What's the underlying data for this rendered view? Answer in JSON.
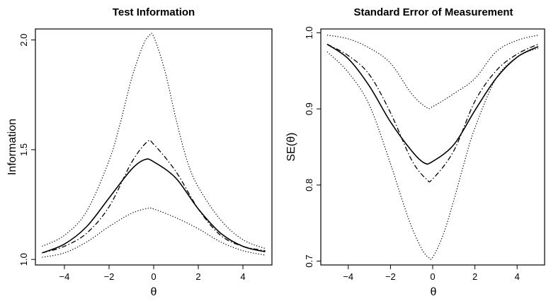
{
  "chart_data": [
    {
      "type": "line",
      "title": "Test Information",
      "xlabel": "θ",
      "ylabel": "Information",
      "xlim": [
        -5.3,
        5.3
      ],
      "ylim": [
        0.975,
        2.05
      ],
      "xticks": [
        -4,
        -2,
        0,
        2,
        4
      ],
      "xtick_labels": [
        "−4",
        "−2",
        "0",
        "2",
        "4"
      ],
      "yticks": [
        1.0,
        1.5,
        2.0
      ],
      "ytick_labels": [
        "1.0",
        "1.5",
        "2.0"
      ],
      "grid": false,
      "series": [
        {
          "style": "solid",
          "x": [
            -5,
            -4,
            -3,
            -2,
            -1,
            -0.4,
            0,
            1,
            2,
            3,
            4,
            5
          ],
          "y": [
            1.03,
            1.07,
            1.15,
            1.28,
            1.41,
            1.455,
            1.445,
            1.37,
            1.23,
            1.12,
            1.06,
            1.035
          ]
        },
        {
          "style": "dashdot",
          "x": [
            -5,
            -4,
            -3,
            -2,
            -1,
            -0.3,
            0,
            1,
            2,
            3,
            4,
            5
          ],
          "y": [
            1.03,
            1.06,
            1.12,
            1.24,
            1.44,
            1.535,
            1.525,
            1.4,
            1.23,
            1.11,
            1.06,
            1.04
          ]
        },
        {
          "style": "dotted",
          "x": [
            -5,
            -4,
            -3,
            -2,
            -1.5,
            -1,
            -0.5,
            -0.2,
            0,
            0.5,
            1,
            1.5,
            2,
            3,
            4,
            5
          ],
          "y": [
            1.06,
            1.11,
            1.22,
            1.45,
            1.62,
            1.82,
            1.97,
            2.02,
            2.015,
            1.86,
            1.64,
            1.45,
            1.33,
            1.18,
            1.09,
            1.05
          ]
        },
        {
          "style": "dotted",
          "x": [
            -5,
            -4,
            -3,
            -2,
            -1,
            -0.3,
            0,
            1,
            2,
            3,
            4,
            5
          ],
          "y": [
            1.01,
            1.03,
            1.08,
            1.15,
            1.21,
            1.232,
            1.23,
            1.19,
            1.14,
            1.08,
            1.04,
            1.02
          ]
        }
      ]
    },
    {
      "type": "line",
      "title": "Standard Error of Measurement",
      "xlabel": "θ",
      "ylabel": "SE(θ)",
      "xlim": [
        -5.3,
        5.3
      ],
      "ylim": [
        0.695,
        1.005
      ],
      "xticks": [
        -4,
        -2,
        0,
        2,
        4
      ],
      "xtick_labels": [
        "−4",
        "−2",
        "0",
        "2",
        "4"
      ],
      "yticks": [
        0.7,
        0.8,
        0.9,
        1.0
      ],
      "ytick_labels": [
        "0.7",
        "0.8",
        "0.9",
        "1.0"
      ],
      "grid": false,
      "series": [
        {
          "style": "solid",
          "x": [
            -5,
            -4,
            -3,
            -2,
            -1,
            -0.4,
            0,
            1,
            2,
            3,
            4,
            5
          ],
          "y": [
            0.985,
            0.966,
            0.93,
            0.883,
            0.845,
            0.829,
            0.831,
            0.853,
            0.898,
            0.94,
            0.968,
            0.982
          ]
        },
        {
          "style": "dashdot",
          "x": [
            -5,
            -4,
            -3,
            -2,
            -1,
            -0.3,
            0,
            1,
            2,
            3,
            4,
            5
          ],
          "y": [
            0.985,
            0.97,
            0.945,
            0.895,
            0.833,
            0.808,
            0.808,
            0.845,
            0.91,
            0.95,
            0.972,
            0.985
          ]
        },
        {
          "style": "dotted",
          "x": [
            -5,
            -4,
            -3,
            -2,
            -1,
            -0.3,
            0,
            1,
            2,
            3,
            4,
            5
          ],
          "y": [
            0.997,
            0.992,
            0.98,
            0.96,
            0.92,
            0.902,
            0.903,
            0.92,
            0.94,
            0.975,
            0.99,
            0.997
          ]
        },
        {
          "style": "dotted",
          "x": [
            -5,
            -4,
            -3,
            -2,
            -1.5,
            -1,
            -0.5,
            -0.2,
            0,
            0.5,
            1,
            1.5,
            2,
            3,
            4,
            5
          ],
          "y": [
            0.975,
            0.948,
            0.905,
            0.828,
            0.785,
            0.745,
            0.715,
            0.705,
            0.705,
            0.735,
            0.78,
            0.83,
            0.875,
            0.94,
            0.968,
            0.98
          ]
        }
      ]
    }
  ]
}
